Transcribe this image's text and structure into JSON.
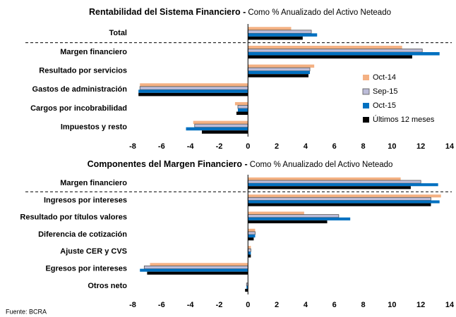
{
  "chart_data": [
    {
      "type": "bar",
      "orientation": "horizontal",
      "title": "Rentabilidad del Sistema Financiero -",
      "subtitle": "Como % Anualizado del Activo Neteado",
      "categories": [
        "Total",
        "Margen financiero",
        "Resultado por servicios",
        "Gastos de administración",
        "Cargos por incobrabilidad",
        "Impuestos y resto"
      ],
      "series": [
        {
          "name": "Oct-14",
          "color": "#f4b183",
          "values": [
            3.0,
            10.7,
            4.6,
            -7.5,
            -0.9,
            -3.8
          ]
        },
        {
          "name": "Sep-15",
          "color": "#bcbcd8",
          "edgecolor": "#555555",
          "values": [
            4.4,
            12.1,
            4.3,
            -7.5,
            -0.7,
            -3.7
          ]
        },
        {
          "name": "Oct-15",
          "color": "#0070c0",
          "values": [
            4.8,
            13.3,
            4.3,
            -7.6,
            -0.7,
            -4.3
          ]
        },
        {
          "name": "Últimos 12 meses",
          "color": "#000000",
          "values": [
            3.8,
            11.4,
            4.2,
            -7.6,
            -0.8,
            -3.2
          ]
        }
      ],
      "xlim": [
        -8,
        14
      ],
      "xticks": [
        -8,
        -6,
        -4,
        -2,
        0,
        2,
        4,
        6,
        8,
        10,
        12,
        14
      ],
      "legend": "right"
    },
    {
      "type": "bar",
      "orientation": "horizontal",
      "title": "Componentes del Margen Financiero -",
      "subtitle": "Como % Anualizado del Activo Neteado",
      "categories": [
        "Margen financiero",
        "Ingresos por intereses",
        "Resultado por títulos valores",
        "Diferencia de cotización",
        "Ajuste CER y CVS",
        "Egresos por intereses",
        "Otros neto"
      ],
      "series": [
        {
          "color": "#f4b183",
          "values": [
            10.6,
            13.4,
            3.9,
            0.5,
            0.2,
            -6.8,
            0.0
          ]
        },
        {
          "color": "#bcbcd8",
          "edgecolor": "#555555",
          "values": [
            12.0,
            12.7,
            6.3,
            0.5,
            0.2,
            -7.2,
            -0.1
          ]
        },
        {
          "color": "#0070c0",
          "values": [
            13.2,
            13.3,
            7.1,
            0.5,
            0.2,
            -7.5,
            -0.1
          ]
        },
        {
          "color": "#000000",
          "values": [
            11.3,
            12.7,
            5.5,
            0.4,
            0.2,
            -7.0,
            -0.2
          ]
        }
      ],
      "xlim": [
        -8,
        14
      ],
      "xticks": [
        -8,
        -6,
        -4,
        -2,
        0,
        2,
        4,
        6,
        8,
        10,
        12,
        14
      ]
    }
  ],
  "source": "Fuente: BCRA"
}
